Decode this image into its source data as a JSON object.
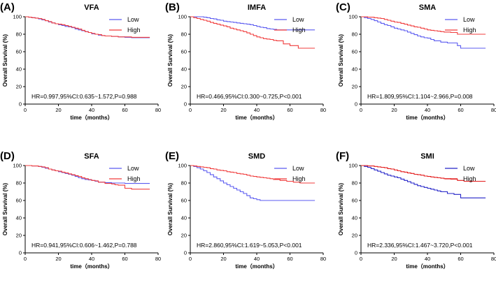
{
  "figure": {
    "size": "709x408"
  },
  "chart_data": [
    {
      "panel": "(A)",
      "type": "line",
      "title": "VFA",
      "xlabel": "time（months）",
      "ylabel": "Overall Survival (%)",
      "xlim": [
        0,
        80
      ],
      "ylim": [
        0,
        100
      ],
      "xticks": [
        0,
        20,
        40,
        60,
        80
      ],
      "yticks": [
        0,
        20,
        40,
        60,
        80,
        100
      ],
      "annotation": "HR=0.997,95%CI:0.635~1.572,P=0.988",
      "series": [
        {
          "name": "Low",
          "color": "#5b5bf0",
          "x": [
            0,
            2,
            4,
            6,
            8,
            10,
            12,
            14,
            16,
            18,
            20,
            22,
            24,
            26,
            28,
            30,
            32,
            34,
            36,
            38,
            40,
            42,
            44,
            46,
            48,
            52,
            56,
            60,
            64,
            70,
            75
          ],
          "y": [
            100,
            99.5,
            99,
            98.5,
            97.5,
            96.5,
            95.5,
            94,
            93,
            92,
            91,
            90,
            89,
            88.5,
            87.5,
            86,
            85,
            84,
            83,
            82,
            80.5,
            80,
            79,
            78.5,
            78,
            77.5,
            77,
            76.5,
            76,
            76,
            76
          ]
        },
        {
          "name": "High",
          "color": "#f03c3c",
          "x": [
            0,
            2,
            4,
            6,
            8,
            10,
            12,
            14,
            16,
            18,
            20,
            22,
            24,
            26,
            28,
            30,
            32,
            34,
            36,
            38,
            40,
            42,
            44,
            46,
            48,
            52,
            56,
            60,
            64,
            70,
            75
          ],
          "y": [
            100,
            99.5,
            99,
            98.5,
            98,
            97,
            95.5,
            94.5,
            93,
            92,
            91.5,
            91,
            90,
            89,
            88,
            87,
            86,
            84.5,
            83,
            82,
            81,
            80,
            79.5,
            78.5,
            78,
            77.5,
            77,
            77,
            76.5,
            76.5,
            76.5
          ]
        }
      ]
    },
    {
      "panel": "(B)",
      "type": "line",
      "title": "IMFA",
      "xlabel": "time（months）",
      "ylabel": "Overall Survival (%)",
      "xlim": [
        0,
        80
      ],
      "ylim": [
        0,
        100
      ],
      "xticks": [
        0,
        20,
        40,
        60,
        80
      ],
      "yticks": [
        0,
        20,
        40,
        60,
        80,
        100
      ],
      "annotation": "HR=0.466,95%CI:0.300~0.725,P<0.001",
      "series": [
        {
          "name": "Low",
          "color": "#5b5bf0",
          "x": [
            0,
            4,
            8,
            10,
            12,
            14,
            16,
            18,
            20,
            22,
            24,
            26,
            28,
            30,
            32,
            34,
            36,
            38,
            40,
            42,
            44,
            46,
            48,
            50,
            52,
            56,
            60,
            65,
            70,
            75
          ],
          "y": [
            100,
            100,
            99.5,
            99,
            98,
            97.5,
            96.5,
            96,
            95,
            94.5,
            94,
            93.5,
            93,
            92.5,
            92,
            91.5,
            91,
            90,
            89,
            88,
            87.5,
            86.5,
            86,
            85.5,
            85,
            85,
            85,
            85,
            85,
            85
          ]
        },
        {
          "name": "High",
          "color": "#f03c3c",
          "x": [
            0,
            2,
            4,
            6,
            8,
            10,
            12,
            14,
            16,
            18,
            20,
            22,
            24,
            26,
            28,
            30,
            32,
            34,
            36,
            38,
            40,
            42,
            44,
            46,
            48,
            50,
            52,
            56,
            60,
            65,
            70,
            75
          ],
          "y": [
            100,
            99,
            98,
            97,
            96,
            95,
            93.5,
            92.5,
            91.5,
            90.5,
            89.5,
            88.5,
            87,
            86,
            85,
            84,
            83,
            81.5,
            80,
            78.5,
            77,
            76,
            75,
            74.5,
            74,
            73,
            72.5,
            69,
            67,
            64,
            64,
            64
          ]
        }
      ]
    },
    {
      "panel": "(C)",
      "type": "line",
      "title": "SMA",
      "xlabel": "time（months）",
      "ylabel": "Overall Survival (%)",
      "xlim": [
        0,
        80
      ],
      "ylim": [
        0,
        100
      ],
      "xticks": [
        0,
        20,
        40,
        60,
        80
      ],
      "yticks": [
        0,
        20,
        40,
        60,
        80,
        100
      ],
      "annotation": "HR=1.809,95%CI:1.104~2.966,P=0.008",
      "series": [
        {
          "name": "Low",
          "color": "#5b5bf0",
          "x": [
            0,
            2,
            4,
            6,
            8,
            10,
            12,
            14,
            16,
            18,
            20,
            22,
            24,
            26,
            28,
            30,
            32,
            34,
            36,
            38,
            40,
            42,
            44,
            48,
            52,
            56,
            58,
            60,
            66,
            75
          ],
          "y": [
            100,
            99,
            98,
            97,
            95.5,
            94,
            92.5,
            91,
            90,
            88.5,
            87,
            86,
            85,
            84,
            82.5,
            81,
            79.5,
            78,
            77,
            76,
            75.5,
            74,
            72.5,
            71,
            70,
            70,
            67,
            64,
            64,
            64
          ]
        },
        {
          "name": "High",
          "color": "#f03c3c",
          "x": [
            0,
            4,
            8,
            10,
            12,
            14,
            16,
            18,
            20,
            22,
            24,
            26,
            28,
            30,
            32,
            34,
            36,
            38,
            40,
            42,
            44,
            46,
            48,
            50,
            54,
            58,
            62,
            66,
            70,
            75
          ],
          "y": [
            100,
            99.5,
            99,
            98.5,
            98,
            97,
            96,
            95,
            94,
            93.5,
            92.5,
            91.5,
            90.5,
            89.5,
            88.5,
            88,
            87,
            86,
            85,
            84.5,
            84,
            83.5,
            83,
            82.5,
            82,
            80,
            80,
            80,
            80,
            80
          ]
        }
      ]
    },
    {
      "panel": "(D)",
      "type": "line",
      "title": "SFA",
      "xlabel": "time（months）",
      "ylabel": "Overall Survival (%)",
      "xlim": [
        0,
        80
      ],
      "ylim": [
        0,
        100
      ],
      "xticks": [
        0,
        20,
        40,
        60,
        80
      ],
      "yticks": [
        0,
        20,
        40,
        60,
        80,
        100
      ],
      "annotation": "HR=0.941,95%CI:0.606~1.462,P=0.788",
      "series": [
        {
          "name": "Low",
          "color": "#5b5bf0",
          "x": [
            0,
            4,
            8,
            10,
            12,
            14,
            16,
            18,
            20,
            22,
            24,
            26,
            28,
            30,
            32,
            34,
            36,
            38,
            40,
            42,
            44,
            48,
            52,
            56,
            60,
            66,
            70,
            75
          ],
          "y": [
            100,
            99.5,
            99,
            98,
            97,
            96,
            95,
            94,
            93,
            92,
            91,
            90,
            89,
            87.5,
            86,
            85,
            84,
            83.5,
            83,
            82,
            81,
            80.5,
            80,
            80,
            79.5,
            79.5,
            79.5,
            79.5
          ]
        },
        {
          "name": "High",
          "color": "#f03c3c",
          "x": [
            0,
            4,
            8,
            10,
            12,
            14,
            16,
            18,
            20,
            22,
            24,
            26,
            28,
            30,
            32,
            34,
            36,
            38,
            40,
            42,
            44,
            48,
            52,
            54,
            56,
            60,
            64,
            70,
            75
          ],
          "y": [
            100,
            99.5,
            99,
            98.5,
            97.5,
            96,
            95,
            94,
            93.5,
            92.5,
            91.5,
            90.5,
            89.5,
            88.5,
            87.5,
            86,
            85,
            84,
            83,
            82.5,
            81,
            79.5,
            79,
            78,
            77.5,
            74,
            73,
            73,
            73
          ]
        }
      ]
    },
    {
      "panel": "(E)",
      "type": "line",
      "title": "SMD",
      "xlabel": "time（months）",
      "ylabel": "Overall Survival (%)",
      "xlim": [
        0,
        80
      ],
      "ylim": [
        0,
        100
      ],
      "xticks": [
        0,
        20,
        40,
        60,
        80
      ],
      "yticks": [
        0,
        20,
        40,
        60,
        80,
        100
      ],
      "annotation": "HR=2.860,95%CI:1.619~5.053,P<0.001",
      "series": [
        {
          "name": "Low",
          "color": "#5b5bf0",
          "x": [
            0,
            2,
            4,
            6,
            8,
            10,
            12,
            14,
            16,
            18,
            20,
            22,
            24,
            26,
            28,
            30,
            32,
            34,
            36,
            38,
            40,
            42,
            44,
            48,
            52,
            56,
            60,
            66,
            70,
            75
          ],
          "y": [
            100,
            99,
            97.5,
            96,
            94,
            92,
            89.5,
            87,
            85,
            82.5,
            80,
            78,
            76,
            74,
            72,
            70,
            68,
            65.5,
            63,
            62,
            61,
            60,
            60,
            60,
            60,
            60,
            60,
            60,
            60,
            60
          ]
        },
        {
          "name": "High",
          "color": "#f03c3c",
          "x": [
            0,
            2,
            4,
            6,
            8,
            10,
            12,
            14,
            16,
            18,
            20,
            22,
            24,
            26,
            28,
            30,
            32,
            34,
            36,
            38,
            40,
            42,
            44,
            46,
            48,
            50,
            54,
            58,
            62,
            66,
            70,
            75
          ],
          "y": [
            100,
            99.5,
            99,
            98.5,
            98,
            97.5,
            96.5,
            96,
            95,
            94.5,
            94,
            93,
            92.5,
            92,
            91,
            90.5,
            90,
            89,
            88,
            87.5,
            87,
            86.5,
            86,
            85.5,
            85,
            84,
            83,
            82,
            81,
            80,
            80,
            80
          ]
        }
      ]
    },
    {
      "panel": "(F)",
      "type": "line",
      "title": "SMI",
      "xlabel": "time（months）",
      "ylabel": "Overall Survival (%)",
      "xlim": [
        0,
        80
      ],
      "ylim": [
        0,
        100
      ],
      "xticks": [
        0,
        20,
        40,
        60,
        80
      ],
      "yticks": [
        0,
        20,
        40,
        60,
        80,
        100
      ],
      "annotation": "HR=2.336,95%CI:1.467~3.720,P<0.001",
      "series": [
        {
          "name": "Low",
          "color": "#2323c8",
          "x": [
            0,
            2,
            4,
            6,
            8,
            10,
            12,
            14,
            16,
            18,
            20,
            22,
            24,
            26,
            28,
            30,
            32,
            34,
            36,
            38,
            40,
            42,
            44,
            46,
            48,
            52,
            56,
            58,
            60,
            66,
            75
          ],
          "y": [
            100,
            99,
            98,
            96.5,
            95,
            93.5,
            92,
            90.5,
            89,
            88,
            87,
            86,
            84.5,
            83,
            81.5,
            80,
            78.5,
            77,
            76,
            75,
            74,
            73,
            72,
            71,
            70,
            68,
            67,
            67,
            63,
            63,
            63
          ]
        },
        {
          "name": "High",
          "color": "#e31a1a",
          "x": [
            0,
            4,
            8,
            10,
            12,
            14,
            16,
            18,
            20,
            22,
            24,
            26,
            28,
            30,
            32,
            34,
            36,
            38,
            40,
            42,
            44,
            46,
            48,
            50,
            54,
            58,
            62,
            66,
            70,
            75
          ],
          "y": [
            100,
            99.5,
            99,
            98.5,
            98,
            97.5,
            96.5,
            96,
            95,
            94,
            93,
            92.5,
            91.5,
            91,
            90,
            89.5,
            89,
            88,
            87.5,
            87,
            86.5,
            86,
            85.5,
            85,
            84.5,
            83,
            82,
            82,
            82,
            82
          ]
        }
      ]
    }
  ]
}
